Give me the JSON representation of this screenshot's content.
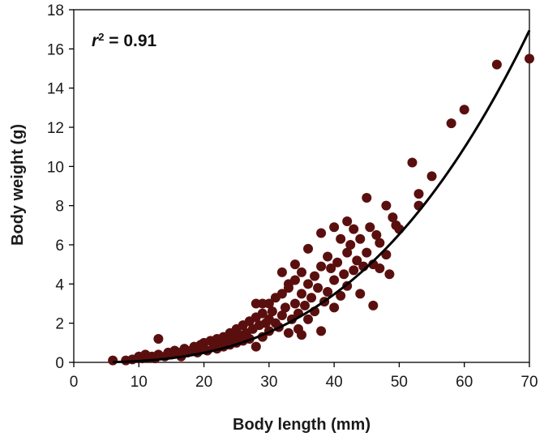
{
  "chart_data": {
    "type": "scatter",
    "title": "",
    "xlabel": "Body length (mm)",
    "ylabel": "Body weight (g)",
    "xlim": [
      0,
      70
    ],
    "ylim": [
      0,
      18
    ],
    "xticks": [
      0,
      10,
      20,
      30,
      40,
      50,
      60,
      70
    ],
    "yticks": [
      0,
      2,
      4,
      6,
      8,
      10,
      12,
      14,
      16,
      18
    ],
    "grid": false,
    "legend": "none",
    "annotation": {
      "r_symbol": "r",
      "r_exponent": "2",
      "r_value_text": " = 0.91"
    },
    "point_color": "#5a0f0f",
    "fit_line": {
      "type": "power",
      "a": 0.0001017,
      "b": 2.83,
      "x_range": [
        6,
        70
      ],
      "color": "#000000"
    },
    "series": [
      {
        "points": [
          [
            6,
            0.1
          ],
          [
            8,
            0.1
          ],
          [
            9,
            0.15
          ],
          [
            10,
            0.3
          ],
          [
            10.5,
            0.2
          ],
          [
            11,
            0.4
          ],
          [
            11.5,
            0.25
          ],
          [
            12,
            0.3
          ],
          [
            12.5,
            0.2
          ],
          [
            13,
            1.2
          ],
          [
            13,
            0.4
          ],
          [
            14,
            0.3
          ],
          [
            14.5,
            0.5
          ],
          [
            15,
            0.4
          ],
          [
            15.5,
            0.6
          ],
          [
            16,
            0.5
          ],
          [
            16.5,
            0.3
          ],
          [
            17,
            0.7
          ],
          [
            17.5,
            0.5
          ],
          [
            18,
            0.6
          ],
          [
            18.5,
            0.8
          ],
          [
            19,
            0.5
          ],
          [
            19.5,
            0.9
          ],
          [
            20,
            0.7
          ],
          [
            20,
            1.0
          ],
          [
            20.5,
            0.6
          ],
          [
            21,
            1.1
          ],
          [
            21.5,
            0.8
          ],
          [
            22,
            1.2
          ],
          [
            22,
            0.7
          ],
          [
            22.5,
            1.0
          ],
          [
            23,
            1.3
          ],
          [
            23,
            0.8
          ],
          [
            23.5,
            1.1
          ],
          [
            24,
            1.5
          ],
          [
            24,
            0.9
          ],
          [
            24.5,
            1.3
          ],
          [
            25,
            1.7
          ],
          [
            25,
            1.0
          ],
          [
            25.5,
            1.4
          ],
          [
            26,
            1.9
          ],
          [
            26,
            1.1
          ],
          [
            26.5,
            1.5
          ],
          [
            27,
            2.1
          ],
          [
            27,
            1.2
          ],
          [
            27.5,
            1.7
          ],
          [
            28,
            2.3
          ],
          [
            28,
            3.0
          ],
          [
            28,
            0.8
          ],
          [
            28.5,
            1.9
          ],
          [
            29,
            2.5
          ],
          [
            29,
            3.0
          ],
          [
            29,
            1.3
          ],
          [
            29.5,
            2.0
          ],
          [
            30,
            2.2
          ],
          [
            30,
            3.0
          ],
          [
            30,
            1.6
          ],
          [
            30.5,
            2.6
          ],
          [
            31,
            2.0
          ],
          [
            31,
            3.3
          ],
          [
            31.5,
            1.8
          ],
          [
            32,
            2.4
          ],
          [
            32,
            3.5
          ],
          [
            32,
            4.6
          ],
          [
            32.5,
            2.8
          ],
          [
            33,
            3.8
          ],
          [
            33,
            1.5
          ],
          [
            33,
            4.0
          ],
          [
            33.5,
            2.2
          ],
          [
            34,
            3.0
          ],
          [
            34,
            4.2
          ],
          [
            34,
            5.0
          ],
          [
            34.5,
            2.5
          ],
          [
            34.5,
            1.7
          ],
          [
            35,
            3.5
          ],
          [
            35,
            4.6
          ],
          [
            35,
            1.4
          ],
          [
            35.5,
            2.9
          ],
          [
            36,
            5.8
          ],
          [
            36,
            4.0
          ],
          [
            36,
            2.2
          ],
          [
            36.5,
            3.3
          ],
          [
            37,
            4.4
          ],
          [
            37,
            2.6
          ],
          [
            37.5,
            3.8
          ],
          [
            38,
            6.6
          ],
          [
            38,
            4.9
          ],
          [
            38,
            1.6
          ],
          [
            38.5,
            3.1
          ],
          [
            39,
            5.4
          ],
          [
            39,
            3.6
          ],
          [
            39.5,
            4.8
          ],
          [
            40,
            6.9
          ],
          [
            40,
            4.2
          ],
          [
            40,
            2.8
          ],
          [
            40.5,
            5.1
          ],
          [
            41,
            6.3
          ],
          [
            41,
            3.4
          ],
          [
            41.5,
            4.5
          ],
          [
            42,
            7.2
          ],
          [
            42,
            5.6
          ],
          [
            42,
            3.9
          ],
          [
            42.5,
            6.0
          ],
          [
            43,
            4.7
          ],
          [
            43,
            6.8
          ],
          [
            43.5,
            5.2
          ],
          [
            44,
            6.3
          ],
          [
            44,
            3.5
          ],
          [
            44.5,
            4.9
          ],
          [
            45,
            8.4
          ],
          [
            45,
            5.6
          ],
          [
            45.5,
            6.9
          ],
          [
            46,
            2.9
          ],
          [
            46,
            5.0
          ],
          [
            46.5,
            6.5
          ],
          [
            47,
            4.8
          ],
          [
            47,
            6.1
          ],
          [
            48,
            5.5
          ],
          [
            48,
            8.0
          ],
          [
            48.5,
            4.5
          ],
          [
            49,
            7.4
          ],
          [
            49.5,
            7.0
          ],
          [
            50,
            6.8
          ],
          [
            52,
            10.2
          ],
          [
            53,
            8.6
          ],
          [
            53,
            8.0
          ],
          [
            55,
            9.5
          ],
          [
            58,
            12.2
          ],
          [
            60,
            12.9
          ],
          [
            65,
            15.2
          ],
          [
            70,
            15.5
          ]
        ]
      }
    ]
  }
}
